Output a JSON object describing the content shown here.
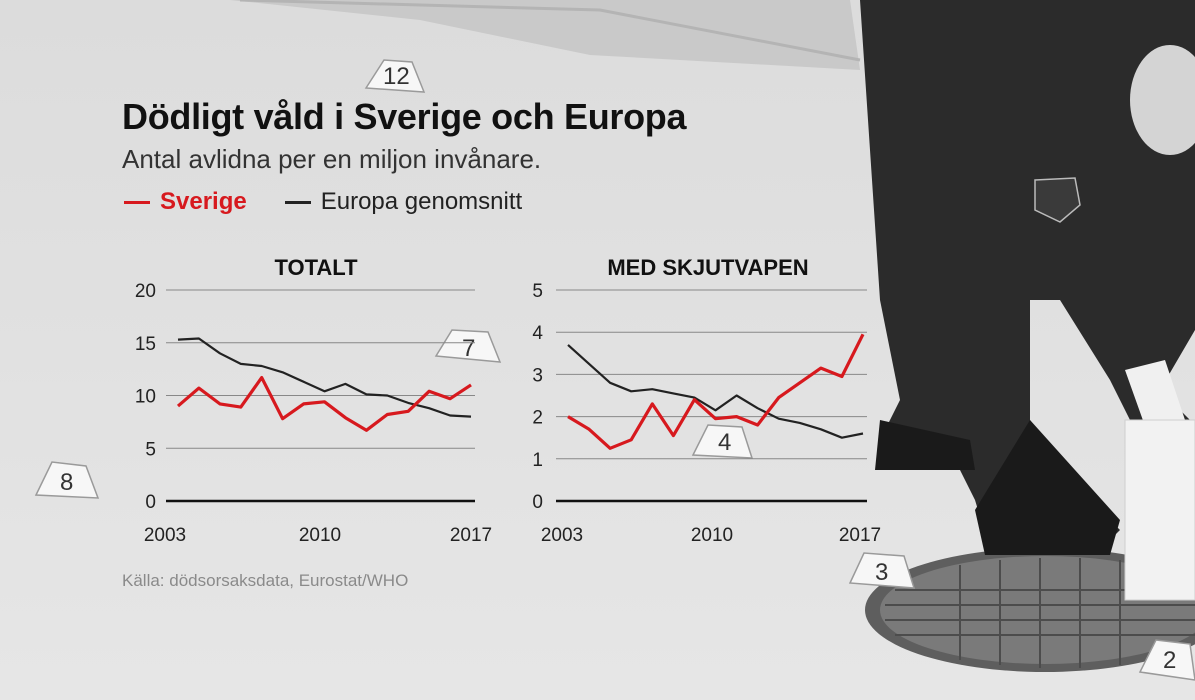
{
  "header": {
    "title": "Dödligt våld i Sverige och Europa",
    "subtitle": "Antal avlidna per en miljon invånare."
  },
  "legend": [
    {
      "label": "Sverige",
      "color": "#d7191e"
    },
    {
      "label": "Europa genomsnitt",
      "color": "#222222"
    }
  ],
  "source": "Källa: dödsorsaksdata, Eurostat/WHO",
  "chart_data": [
    {
      "type": "line",
      "title": "TOTALT",
      "xlabel": "",
      "ylabel": "",
      "x": [
        2003,
        2004,
        2005,
        2006,
        2007,
        2008,
        2009,
        2010,
        2011,
        2012,
        2013,
        2014,
        2015,
        2016,
        2017
      ],
      "xticks": [
        "2003",
        "2010",
        "2017"
      ],
      "yticks": [
        "0",
        "5",
        "10",
        "15",
        "20"
      ],
      "ylim": [
        0,
        20
      ],
      "grid": true,
      "series": [
        {
          "name": "Sverige",
          "color": "#d7191e",
          "values": [
            9.0,
            10.7,
            9.2,
            8.9,
            11.7,
            7.8,
            9.2,
            9.4,
            7.9,
            6.7,
            8.2,
            8.5,
            10.4,
            9.7,
            11.0
          ]
        },
        {
          "name": "Europa genomsnitt",
          "color": "#222222",
          "values": [
            15.3,
            15.4,
            14.0,
            13.0,
            12.8,
            12.2,
            11.3,
            10.4,
            11.1,
            10.1,
            10.0,
            9.3,
            8.8,
            8.1,
            8.0
          ]
        }
      ]
    },
    {
      "type": "line",
      "title": "MED SKJUTVAPEN",
      "xlabel": "",
      "ylabel": "",
      "x": [
        2003,
        2004,
        2005,
        2006,
        2007,
        2008,
        2009,
        2010,
        2011,
        2012,
        2013,
        2014,
        2015,
        2016,
        2017
      ],
      "xticks": [
        "2003",
        "2010",
        "2017"
      ],
      "yticks": [
        "0",
        "1",
        "2",
        "3",
        "4",
        "5"
      ],
      "ylim": [
        0,
        5
      ],
      "grid": true,
      "series": [
        {
          "name": "Sverige",
          "color": "#d7191e",
          "values": [
            2.0,
            1.7,
            1.25,
            1.45,
            2.3,
            1.55,
            2.4,
            1.95,
            2.0,
            1.8,
            2.45,
            2.8,
            3.15,
            2.95,
            3.95
          ]
        },
        {
          "name": "Europa genomsnitt",
          "color": "#222222",
          "values": [
            3.7,
            3.25,
            2.8,
            2.6,
            2.65,
            2.55,
            2.45,
            2.15,
            2.5,
            2.2,
            1.95,
            1.85,
            1.7,
            1.5,
            1.6
          ]
        }
      ]
    }
  ]
}
